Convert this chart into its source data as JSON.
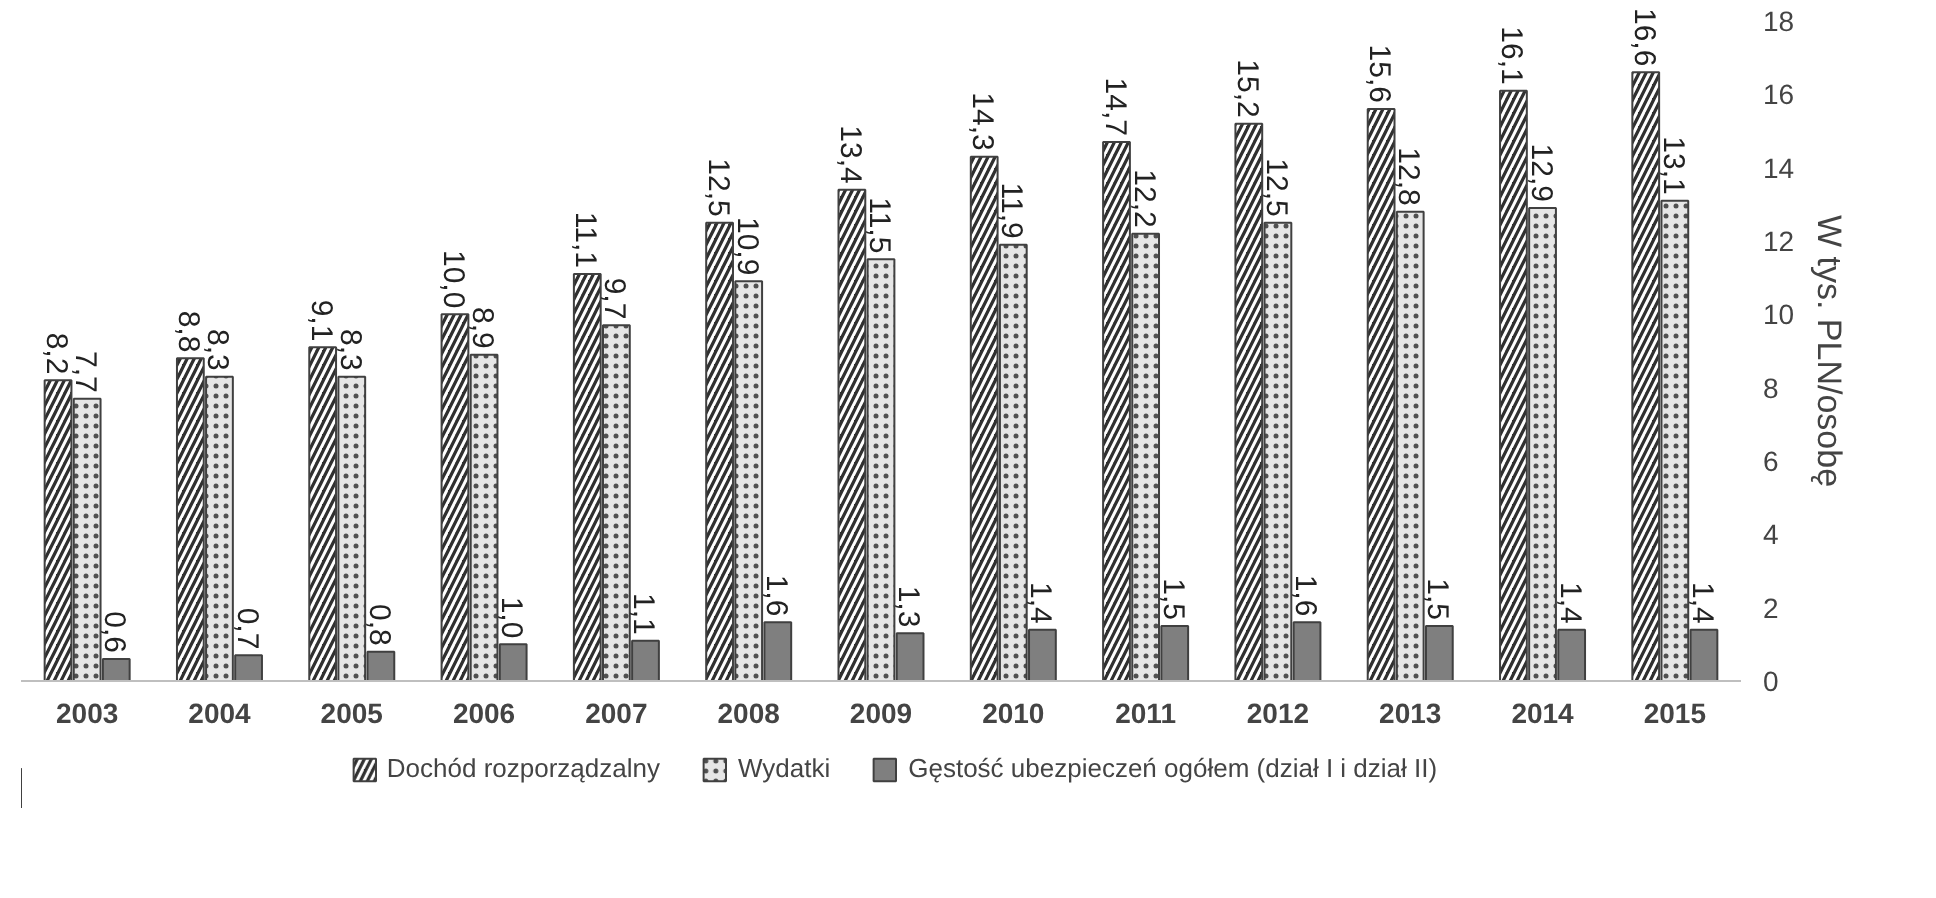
{
  "chart_data": {
    "type": "bar",
    "categories": [
      "2003",
      "2004",
      "2005",
      "2006",
      "2007",
      "2008",
      "2009",
      "2010",
      "2011",
      "2012",
      "2013",
      "2014",
      "2015"
    ],
    "ylabel": "W tys. PLN/osobę",
    "ylim": [
      0,
      18
    ],
    "yticks": [
      0,
      2,
      4,
      6,
      8,
      10,
      12,
      14,
      16,
      18
    ],
    "grid": false,
    "legend": "bottom",
    "series": [
      {
        "name": "Dochód rozporządzalny",
        "color": "#303030",
        "values": [
          8.2,
          8.8,
          9.1,
          10.0,
          11.1,
          12.5,
          13.4,
          14.3,
          14.7,
          15.2,
          15.6,
          16.1,
          16.6
        ],
        "value_labels": [
          "8,2",
          "8,8",
          "9,1",
          "10,0",
          "11,1",
          "12,5",
          "13,4",
          "14,3",
          "14,7",
          "15,2",
          "15,6",
          "16,1",
          "16,6"
        ]
      },
      {
        "name": "Wydatki",
        "color": "#e6e6e6",
        "values": [
          7.7,
          8.3,
          8.3,
          8.9,
          9.7,
          10.9,
          11.5,
          11.9,
          12.2,
          12.5,
          12.8,
          12.9,
          13.1
        ],
        "value_labels": [
          "7,7",
          "8,3",
          "8,3",
          "8,9",
          "9,7",
          "10,9",
          "11,5",
          "11,9",
          "12,2",
          "12,5",
          "12,8",
          "12,9",
          "13,1"
        ]
      },
      {
        "name": "Gęstość ubezpieczeń ogółem (dział I i dział II)",
        "color": "#7f7f7f",
        "values": [
          0.6,
          0.7,
          0.8,
          1.0,
          1.1,
          1.6,
          1.3,
          1.4,
          1.5,
          1.6,
          1.5,
          1.4,
          1.4
        ],
        "value_labels": [
          "0,6",
          "0,7",
          "0,8",
          "1,0",
          "1,1",
          "1,6",
          "1,3",
          "1,4",
          "1,5",
          "1,6",
          "1,5",
          "1,4",
          "1,4"
        ]
      }
    ]
  }
}
